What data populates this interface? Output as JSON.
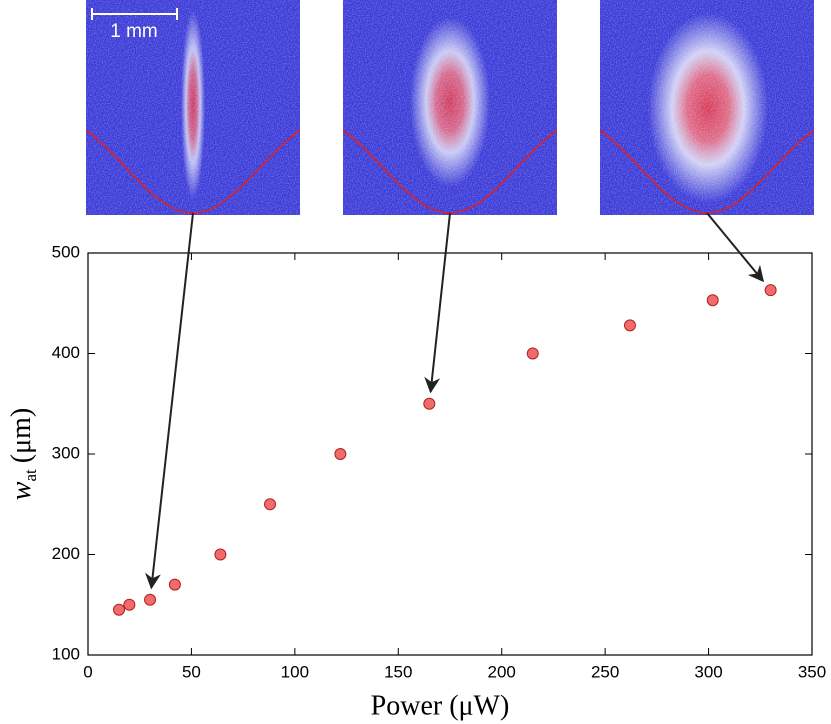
{
  "chart_data": {
    "type": "scatter",
    "x": [
      15,
      20,
      30,
      42,
      64,
      88,
      122,
      165,
      215,
      262,
      302,
      330
    ],
    "series": [
      {
        "color": "#f26b6b",
        "values": [
          145,
          150,
          155,
          170,
          200,
          250,
          300,
          350,
          400,
          428,
          453,
          463
        ]
      }
    ],
    "xlim": [
      0,
      350
    ],
    "xticks": [
      0,
      50,
      100,
      150,
      200,
      250,
      300,
      350
    ],
    "ylim": [
      100,
      500
    ],
    "yticks": [
      100,
      200,
      300,
      400,
      500
    ],
    "x_label": "Power (μW)",
    "y_label": {
      "symbol": "w",
      "subscript": "at",
      "unit": "(μm)"
    },
    "scale_bar": "1 mm"
  }
}
